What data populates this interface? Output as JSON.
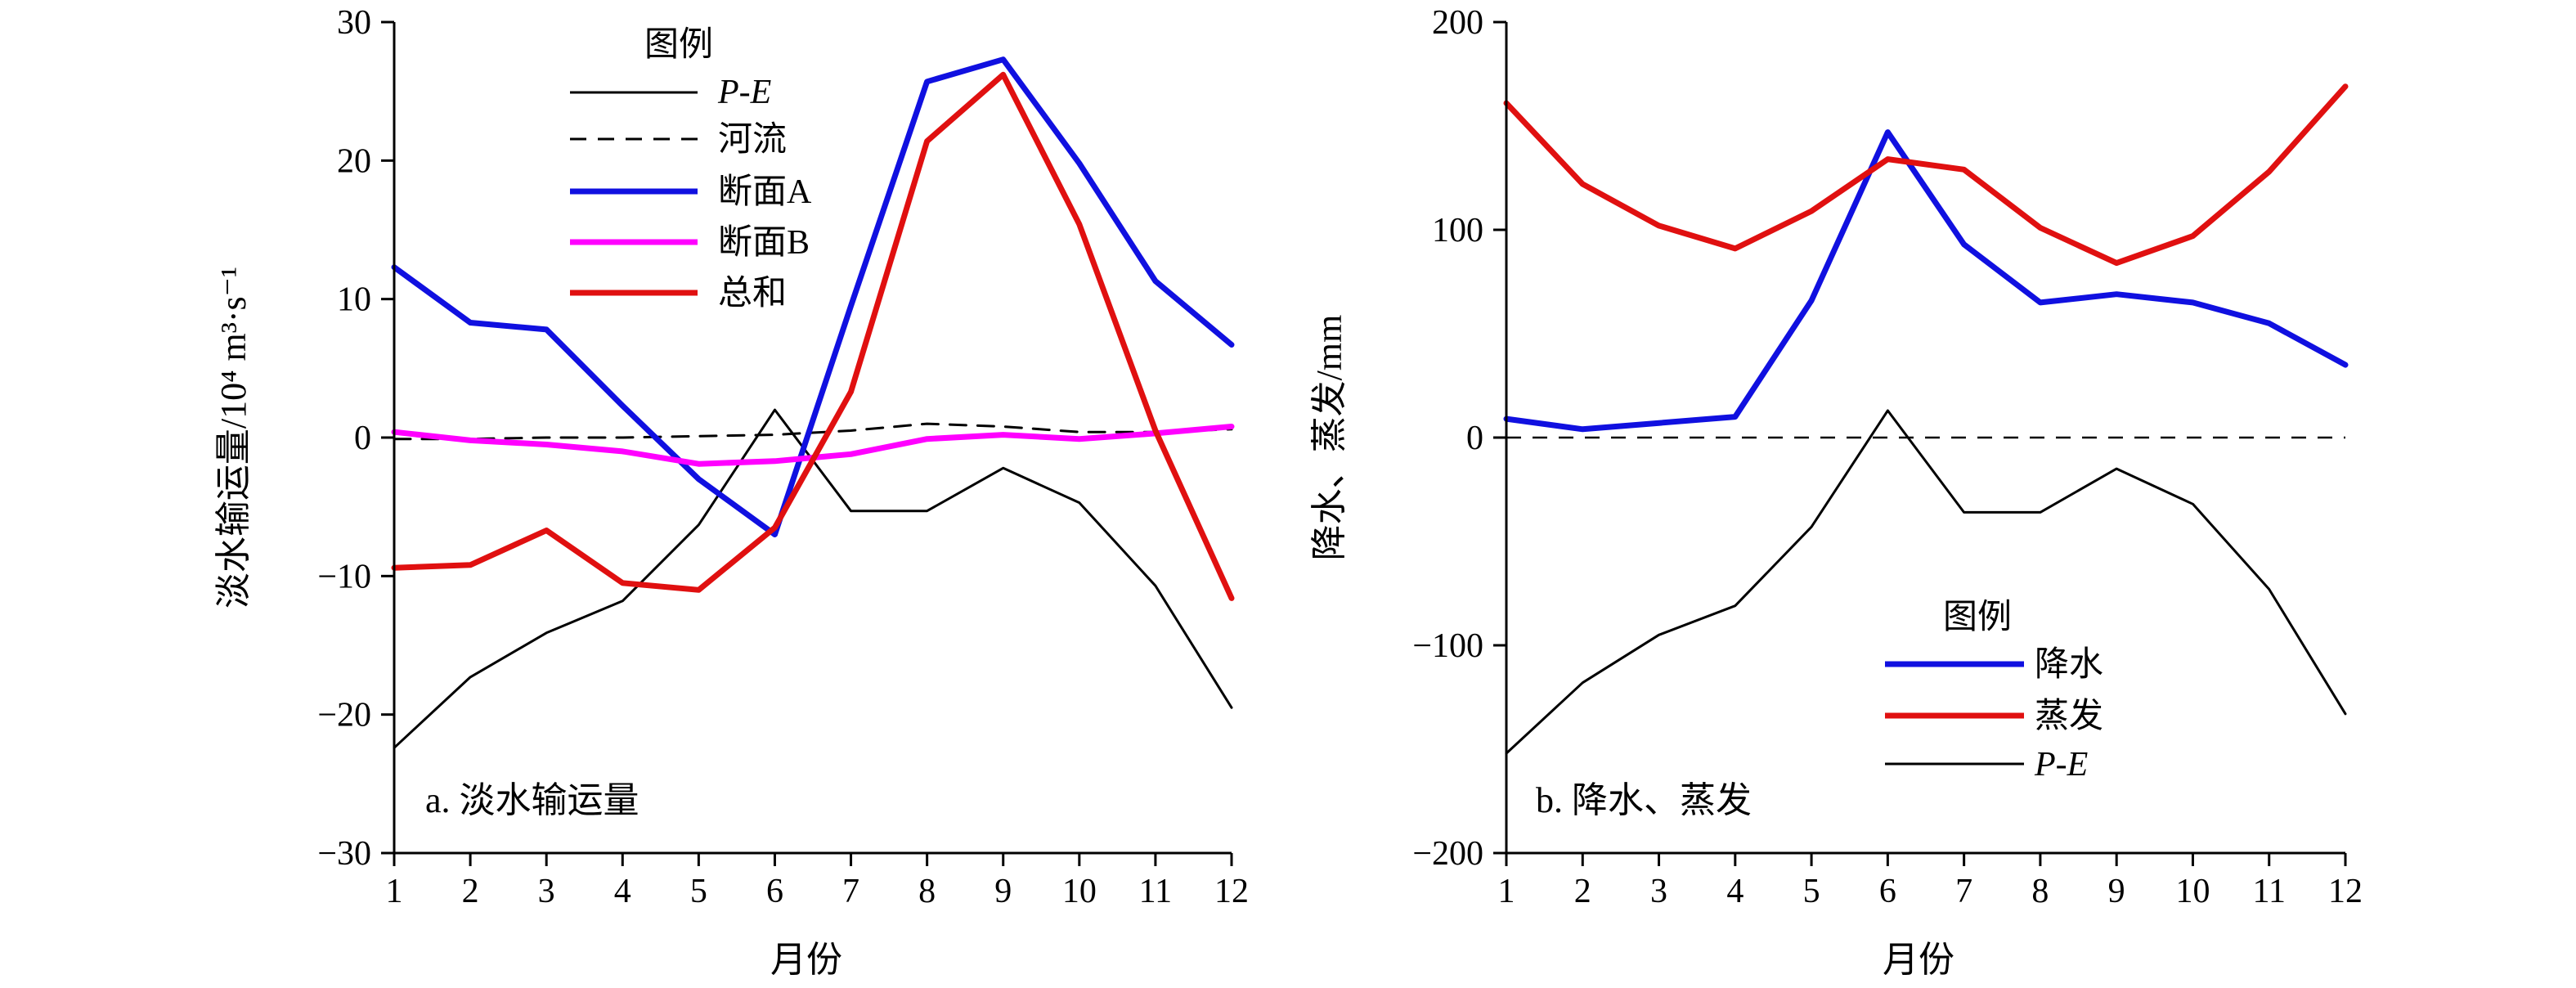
{
  "chart_data": [
    {
      "type": "line",
      "panel_label": "a. 淡水输运量",
      "xlabel": "月份",
      "ylabel": "淡水输运量/10⁴ m³·s⁻¹",
      "xlim": [
        1,
        12
      ],
      "ylim": [
        -30,
        30
      ],
      "x_ticks": [
        1,
        2,
        3,
        4,
        5,
        6,
        7,
        8,
        9,
        10,
        11,
        12
      ],
      "y_ticks": [
        -30,
        -20,
        -10,
        0,
        10,
        20,
        30
      ],
      "y_tick_labels": [
        "−30",
        "−20",
        "−10",
        "0",
        "10",
        "20",
        "30"
      ],
      "grid": false,
      "legend": {
        "title": "图例",
        "placement": "top-center",
        "entries": [
          "P-E",
          "河流",
          "断面A",
          "断面B",
          "总和"
        ]
      },
      "series": [
        {
          "name": "P-E",
          "color": "#000000",
          "style": "solid",
          "width": "thin",
          "x": [
            1,
            2,
            3,
            4,
            5,
            6,
            7,
            8,
            9,
            10,
            11,
            12
          ],
          "values": [
            -22.4,
            -17.3,
            -14.1,
            -11.8,
            -6.3,
            2.0,
            -5.3,
            -5.3,
            -2.2,
            -4.7,
            -10.7,
            -19.5
          ]
        },
        {
          "name": "河流",
          "color": "#000000",
          "style": "dashed",
          "width": "thin",
          "x": [
            1,
            2,
            3,
            4,
            5,
            6,
            7,
            8,
            9,
            10,
            11,
            12
          ],
          "values": [
            -0.1,
            -0.1,
            0.0,
            0.0,
            0.1,
            0.2,
            0.5,
            1.0,
            0.8,
            0.4,
            0.4,
            0.6
          ]
        },
        {
          "name": "断面A",
          "color": "#1010e0",
          "style": "solid",
          "width": "thick",
          "x": [
            1,
            2,
            3,
            4,
            5,
            6,
            7,
            8,
            9,
            10,
            11,
            12
          ],
          "values": [
            12.3,
            8.3,
            7.8,
            2.3,
            -3.0,
            -7.0,
            9.5,
            25.7,
            27.3,
            19.8,
            11.3,
            6.7
          ]
        },
        {
          "name": "断面B",
          "color": "#ff00ff",
          "style": "solid",
          "width": "thick",
          "x": [
            1,
            2,
            3,
            4,
            5,
            6,
            7,
            8,
            9,
            10,
            11,
            12
          ],
          "values": [
            0.4,
            -0.2,
            -0.5,
            -1.0,
            -1.9,
            -1.7,
            -1.2,
            -0.1,
            0.2,
            -0.1,
            0.3,
            0.8
          ]
        },
        {
          "name": "总和",
          "color": "#e01010",
          "style": "solid",
          "width": "thick",
          "x": [
            1,
            2,
            3,
            4,
            5,
            6,
            7,
            8,
            9,
            10,
            11,
            12
          ],
          "values": [
            -9.4,
            -9.2,
            -6.7,
            -10.5,
            -11.0,
            -6.5,
            3.3,
            21.4,
            26.2,
            15.4,
            0.5,
            -11.6
          ]
        }
      ]
    },
    {
      "type": "line",
      "panel_label": "b. 降水、蒸发",
      "xlabel": "月份",
      "ylabel": "降水、蒸发/mm",
      "xlim": [
        1,
        12
      ],
      "ylim": [
        -200,
        200
      ],
      "x_ticks": [
        1,
        2,
        3,
        4,
        5,
        6,
        7,
        8,
        9,
        10,
        11,
        12
      ],
      "y_ticks": [
        -200,
        -100,
        0,
        100,
        200
      ],
      "y_tick_labels": [
        "−200",
        "−100",
        "0",
        "100",
        "200"
      ],
      "grid": false,
      "zero_line": "dashed",
      "legend": {
        "title": "图例",
        "placement": "bottom-right",
        "entries": [
          "降水",
          "蒸发",
          "P-E"
        ]
      },
      "series": [
        {
          "name": "降水",
          "color": "#1010e0",
          "style": "solid",
          "width": "thick",
          "x": [
            1,
            2,
            3,
            4,
            5,
            6,
            7,
            8,
            9,
            10,
            11,
            12
          ],
          "values": [
            9,
            4,
            7,
            10,
            66,
            147,
            93,
            65,
            69,
            65,
            55,
            35
          ]
        },
        {
          "name": "蒸发",
          "color": "#e01010",
          "style": "solid",
          "width": "thick",
          "x": [
            1,
            2,
            3,
            4,
            5,
            6,
            7,
            8,
            9,
            10,
            11,
            12
          ],
          "values": [
            161,
            122,
            102,
            91,
            109,
            134,
            129,
            101,
            84,
            97,
            128,
            169
          ]
        },
        {
          "name": "P-E",
          "color": "#000000",
          "style": "solid",
          "width": "thin",
          "x": [
            1,
            2,
            3,
            4,
            5,
            6,
            7,
            8,
            9,
            10,
            11,
            12
          ],
          "values": [
            -152,
            -118,
            -95,
            -81,
            -43,
            13,
            -36,
            -36,
            -15,
            -32,
            -73,
            -133
          ]
        }
      ]
    }
  ]
}
